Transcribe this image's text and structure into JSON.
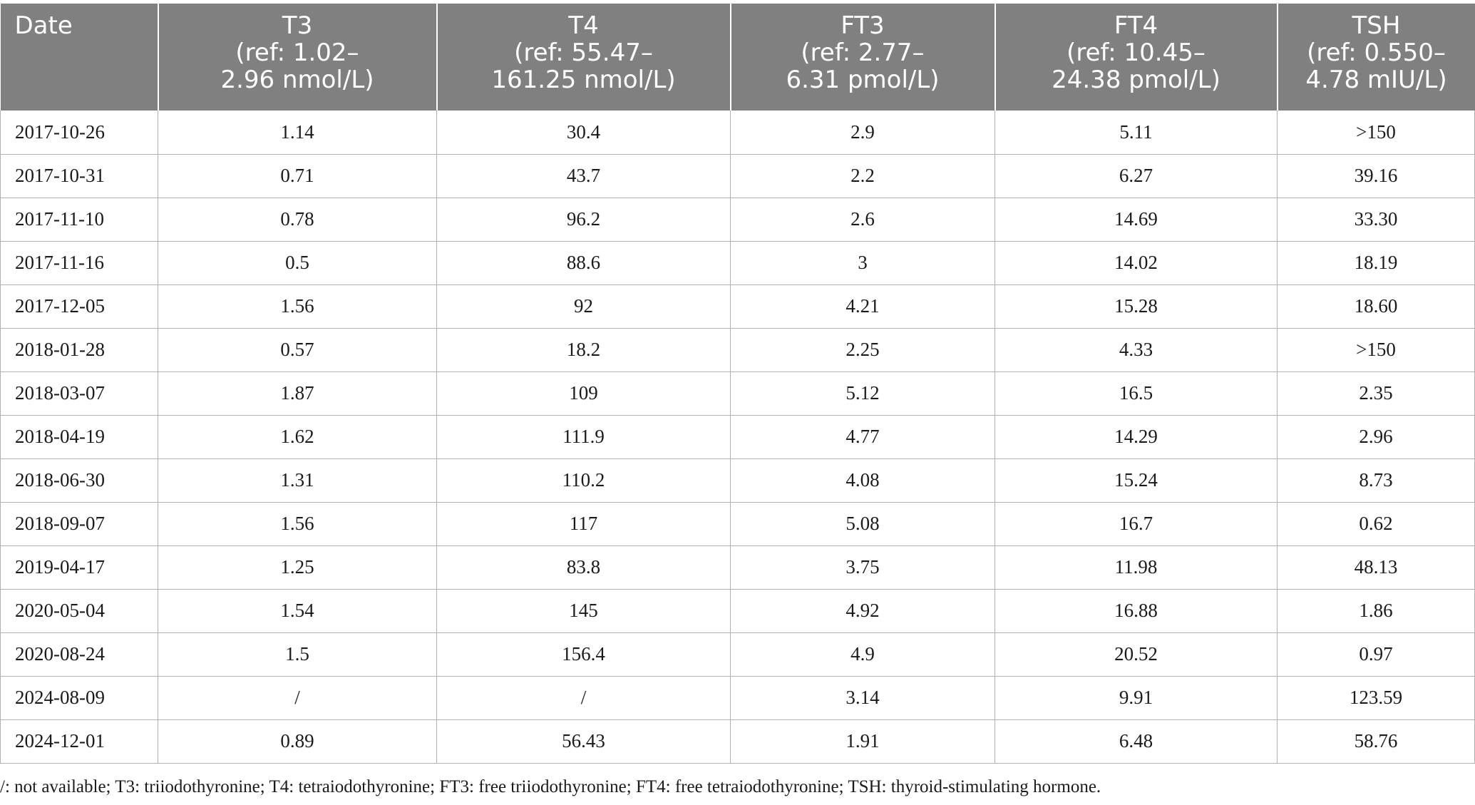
{
  "table": {
    "headers": [
      {
        "lines": [
          "Date"
        ]
      },
      {
        "lines": [
          "T3",
          "(ref: 1.02–",
          "2.96 nmol/L)"
        ]
      },
      {
        "lines": [
          "T4",
          "(ref: 55.47–",
          "161.25 nmol/L)"
        ]
      },
      {
        "lines": [
          "FT3",
          "(ref: 2.77–",
          "6.31 pmol/L)"
        ]
      },
      {
        "lines": [
          "FT4",
          "(ref: 10.45–",
          "24.38 pmol/L)"
        ]
      },
      {
        "lines": [
          "TSH",
          "(ref: 0.550–",
          "4.78 mIU/L)"
        ]
      }
    ],
    "rows": [
      [
        "2017-10-26",
        "1.14",
        "30.4",
        "2.9",
        "5.11",
        ">150"
      ],
      [
        "2017-10-31",
        "0.71",
        "43.7",
        "2.2",
        "6.27",
        "39.16"
      ],
      [
        "2017-11-10",
        "0.78",
        "96.2",
        "2.6",
        "14.69",
        "33.30"
      ],
      [
        "2017-11-16",
        "0.5",
        "88.6",
        "3",
        "14.02",
        "18.19"
      ],
      [
        "2017-12-05",
        "1.56",
        "92",
        "4.21",
        "15.28",
        "18.60"
      ],
      [
        "2018-01-28",
        "0.57",
        "18.2",
        "2.25",
        "4.33",
        ">150"
      ],
      [
        "2018-03-07",
        "1.87",
        "109",
        "5.12",
        "16.5",
        "2.35"
      ],
      [
        "2018-04-19",
        "1.62",
        "111.9",
        "4.77",
        "14.29",
        "2.96"
      ],
      [
        "2018-06-30",
        "1.31",
        "110.2",
        "4.08",
        "15.24",
        "8.73"
      ],
      [
        "2018-09-07",
        "1.56",
        "117",
        "5.08",
        "16.7",
        "0.62"
      ],
      [
        "2019-04-17",
        "1.25",
        "83.8",
        "3.75",
        "11.98",
        "48.13"
      ],
      [
        "2020-05-04",
        "1.54",
        "145",
        "4.92",
        "16.88",
        "1.86"
      ],
      [
        "2020-08-24",
        "1.5",
        "156.4",
        "4.9",
        "20.52",
        "0.97"
      ],
      [
        "2024-08-09",
        "/",
        "/",
        "3.14",
        "9.91",
        "123.59"
      ],
      [
        "2024-12-01",
        "0.89",
        "56.43",
        "1.91",
        "6.48",
        "58.76"
      ]
    ]
  },
  "footnote": "/: not available; T3: triiodothyronine; T4: tetraiodothyronine; FT3: free triiodothyronine; FT4: free tetraiodothyronine; TSH: thyroid-stimulating hormone."
}
